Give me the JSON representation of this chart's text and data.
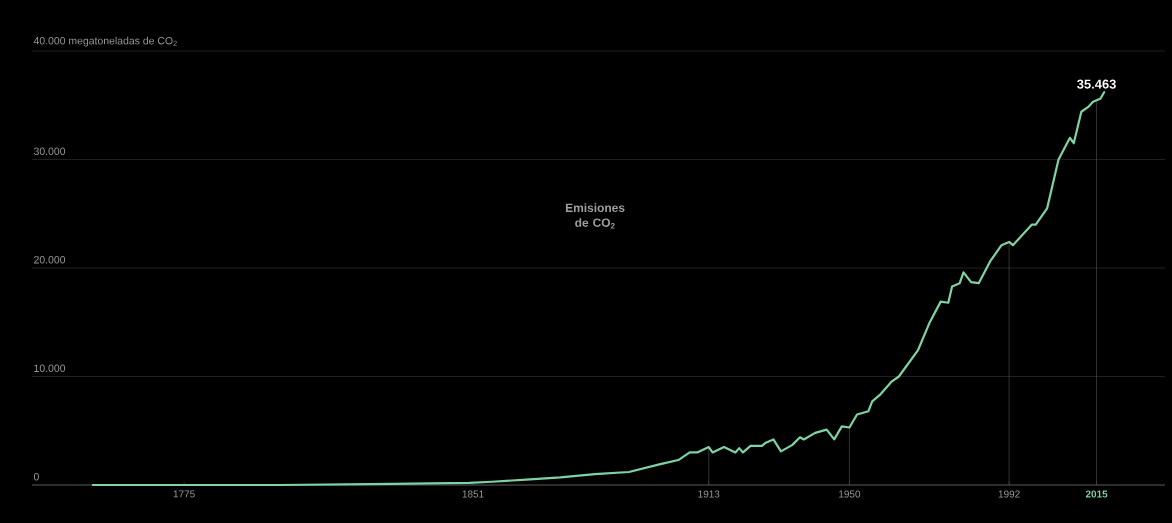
{
  "chart_data": {
    "type": "line",
    "annotations": [
      "Emisiones de CO$_{2}$",
      {
        "text": "35.463",
        "x": 2015,
        "y": 35463
      }
    ],
    "series": [
      {
        "color": "#7ed3a4",
        "x": [
          1751,
          1775,
          1800,
          1830,
          1850,
          1856,
          1865,
          1874,
          1883,
          1892,
          1900,
          1905,
          1908,
          1910,
          1913,
          1914,
          1917,
          1920,
          1921,
          1922,
          1924,
          1927,
          1928,
          1930,
          1932,
          1935,
          1937,
          1938,
          1941,
          1944,
          1946,
          1948,
          1950,
          1952,
          1955,
          1956,
          1958,
          1961,
          1963,
          1968,
          1971,
          1974,
          1976,
          1977,
          1979,
          1980,
          1982,
          1984,
          1987,
          1990,
          1992,
          1993,
          1998,
          1999,
          2002,
          2005,
          2008,
          2009,
          2011,
          2013,
          2014,
          2015,
          2016,
          2017
        ],
        "values": [
          0,
          0,
          0,
          100,
          200,
          300,
          500,
          700,
          1000,
          1200,
          1900,
          2300,
          3000,
          3000,
          3500,
          3000,
          3500,
          3000,
          3400,
          3000,
          3600,
          3600,
          3900,
          4200,
          3100,
          3700,
          4400,
          4200,
          4800,
          5100,
          4200,
          5400,
          5300,
          6500,
          6800,
          7700,
          8300,
          9500,
          10000,
          12400,
          14900,
          16900,
          16800,
          18300,
          18600,
          19600,
          18700,
          18600,
          20600,
          22100,
          22400,
          22100,
          24000,
          24000,
          25500,
          30000,
          32000,
          31500,
          34400,
          34900,
          35300,
          35463,
          35600,
          36200
        ]
      }
    ],
    "xlim": [
      1735,
      2033
    ],
    "ylim": [
      0,
      40000
    ],
    "xticks": [
      1775,
      1851,
      1913,
      1950,
      1992,
      2015
    ],
    "yticks": [
      0,
      {
        "value": 10000,
        "label": "10.000"
      },
      {
        "value": 20000,
        "label": "20.000"
      },
      {
        "value": 30000,
        "label": "30.000"
      },
      {
        "value": 40000,
        "label": "40.000 megatoneladas de CO$_{2}$"
      }
    ],
    "grid": "y",
    "marker": "none",
    "line_style": "solid",
    "ref_lines": [
      {
        "axis": "x",
        "value": 1913
      },
      {
        "axis": "x",
        "value": 1950
      },
      {
        "axis": "x",
        "value": 1992
      },
      {
        "axis": "x",
        "value": 2015
      }
    ]
  }
}
